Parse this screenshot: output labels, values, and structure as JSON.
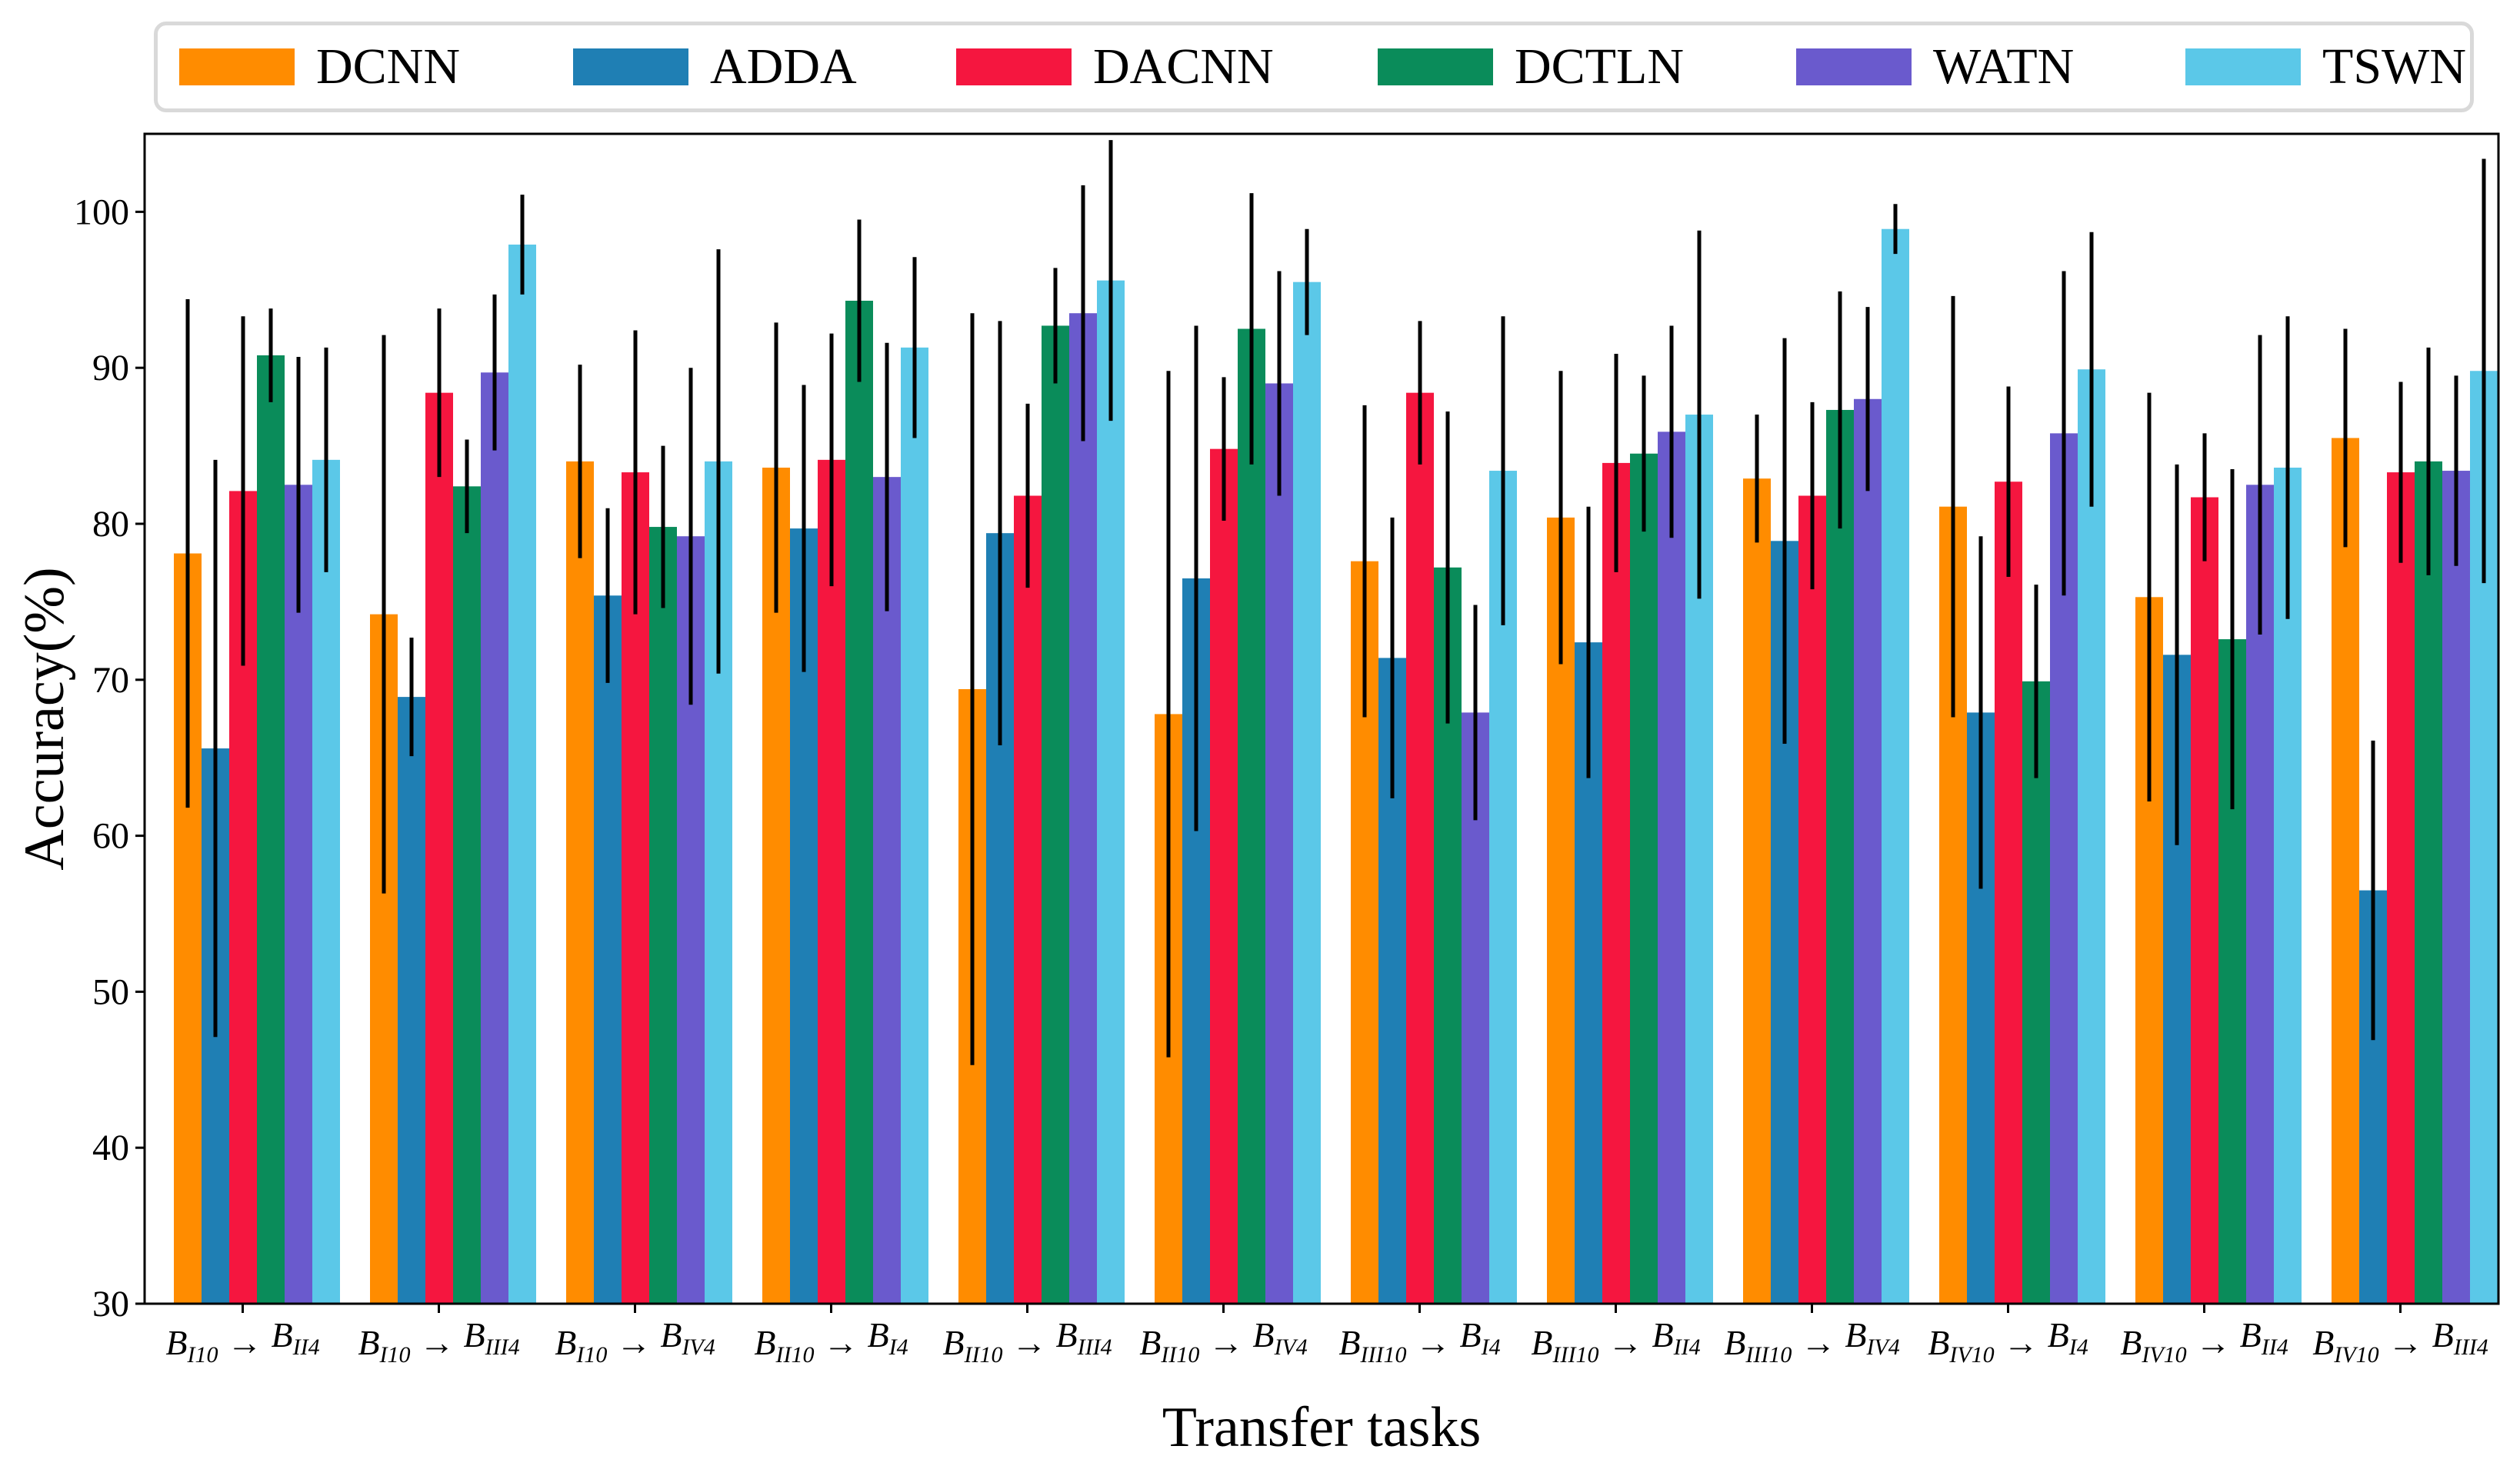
{
  "chart_data": {
    "type": "bar",
    "xlabel": "Transfer tasks",
    "ylabel": "Accuracy(%)",
    "ylim": [
      30,
      105
    ],
    "yticks": [
      30,
      40,
      50,
      60,
      70,
      80,
      90,
      100
    ],
    "grid": false,
    "legend_position": "top",
    "categories": [
      {
        "from_base": "B",
        "from_sub": "I10",
        "arrow": "→",
        "to_base": "B",
        "to_sub": "II4"
      },
      {
        "from_base": "B",
        "from_sub": "I10",
        "arrow": "→",
        "to_base": "B",
        "to_sub": "III4"
      },
      {
        "from_base": "B",
        "from_sub": "I10",
        "arrow": "→",
        "to_base": "B",
        "to_sub": "IV4"
      },
      {
        "from_base": "B",
        "from_sub": "II10",
        "arrow": "→",
        "to_base": "B",
        "to_sub": "I4"
      },
      {
        "from_base": "B",
        "from_sub": "II10",
        "arrow": "→",
        "to_base": "B",
        "to_sub": "III4"
      },
      {
        "from_base": "B",
        "from_sub": "II10",
        "arrow": "→",
        "to_base": "B",
        "to_sub": "IV4"
      },
      {
        "from_base": "B",
        "from_sub": "III10",
        "arrow": "→",
        "to_base": "B",
        "to_sub": "I4"
      },
      {
        "from_base": "B",
        "from_sub": "III10",
        "arrow": "→",
        "to_base": "B",
        "to_sub": "II4"
      },
      {
        "from_base": "B",
        "from_sub": "III10",
        "arrow": "→",
        "to_base": "B",
        "to_sub": "IV4"
      },
      {
        "from_base": "B",
        "from_sub": "IV10",
        "arrow": "→",
        "to_base": "B",
        "to_sub": "I4"
      },
      {
        "from_base": "B",
        "from_sub": "IV10",
        "arrow": "→",
        "to_base": "B",
        "to_sub": "II4"
      },
      {
        "from_base": "B",
        "from_sub": "IV10",
        "arrow": "→",
        "to_base": "B",
        "to_sub": "III4"
      }
    ],
    "series": [
      {
        "name": "DCNN",
        "color": "#ff8c00",
        "values": [
          78.1,
          74.2,
          84.0,
          83.6,
          69.4,
          67.8,
          77.6,
          80.4,
          82.9,
          81.1,
          75.3,
          85.5
        ],
        "errors": [
          16.3,
          17.9,
          6.2,
          9.3,
          24.1,
          22.0,
          10.0,
          9.4,
          4.1,
          13.5,
          13.1,
          7.0
        ]
      },
      {
        "name": "ADDA",
        "color": "#1f7fb4",
        "values": [
          65.6,
          68.9,
          75.4,
          79.7,
          79.4,
          76.5,
          71.4,
          72.4,
          78.9,
          67.9,
          71.6,
          56.5
        ],
        "errors": [
          18.5,
          3.8,
          5.6,
          9.2,
          13.6,
          16.2,
          9.0,
          8.7,
          13.0,
          11.3,
          12.2,
          9.6
        ]
      },
      {
        "name": "DACNN",
        "color": "#f5163f",
        "values": [
          82.1,
          88.4,
          83.3,
          84.1,
          81.8,
          84.8,
          88.4,
          83.9,
          81.8,
          82.7,
          81.7,
          83.3
        ],
        "errors": [
          11.2,
          5.4,
          9.1,
          8.1,
          5.9,
          4.6,
          4.6,
          7.0,
          6.0,
          6.1,
          4.1,
          5.8
        ]
      },
      {
        "name": "DCTLN",
        "color": "#0a8c5a",
        "values": [
          90.8,
          82.4,
          79.8,
          94.3,
          92.7,
          92.5,
          77.2,
          84.5,
          87.3,
          69.9,
          72.6,
          84.0
        ],
        "errors": [
          3.0,
          3.0,
          5.2,
          5.2,
          3.7,
          8.7,
          10.0,
          5.0,
          7.6,
          6.2,
          10.9,
          7.3
        ]
      },
      {
        "name": "WATN",
        "color": "#6a5acd",
        "values": [
          82.5,
          89.7,
          79.2,
          83.0,
          93.5,
          89.0,
          67.9,
          85.9,
          88.0,
          85.8,
          82.5,
          83.4
        ],
        "errors": [
          8.2,
          5.0,
          10.8,
          8.6,
          8.2,
          7.2,
          6.9,
          6.8,
          5.9,
          10.4,
          9.6,
          6.1
        ]
      },
      {
        "name": "TSWN",
        "color": "#5bc8e8",
        "values": [
          84.1,
          97.9,
          84.0,
          91.3,
          95.6,
          95.5,
          83.4,
          87.0,
          98.9,
          89.9,
          83.6,
          89.8
        ],
        "errors": [
          7.2,
          3.2,
          13.6,
          5.8,
          9.0,
          3.4,
          9.9,
          11.8,
          1.6,
          8.8,
          9.7,
          13.6
        ]
      }
    ]
  }
}
